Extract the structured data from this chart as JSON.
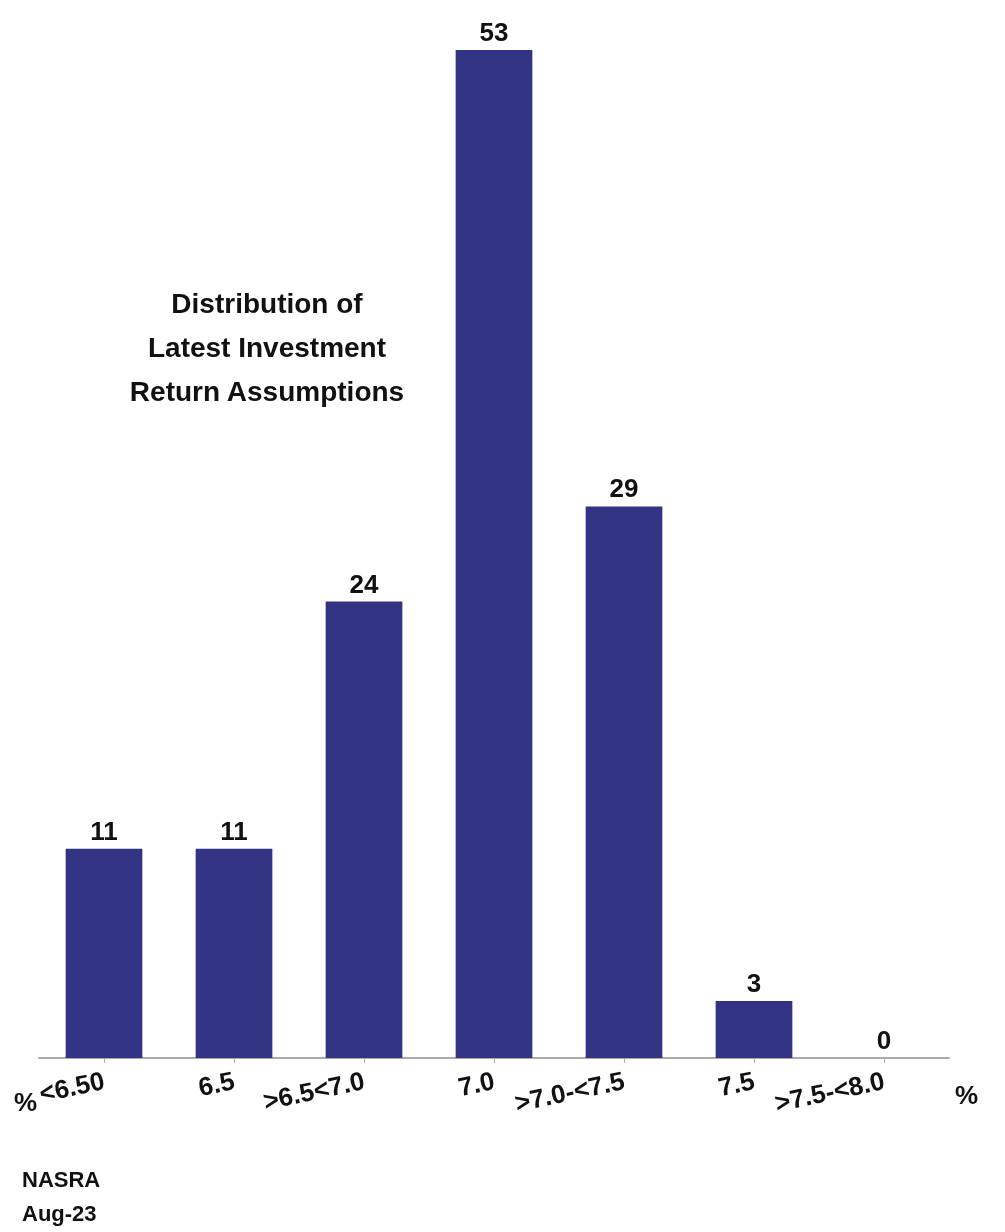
{
  "chart_data": {
    "type": "bar",
    "title": "Distribution of\nLatest Investment\nReturn Assumptions",
    "categories": [
      "<6.50",
      "6.5",
      ">6.5<7.0",
      "7.0",
      ">7.0-<7.5",
      "7.5",
      ">7.5-<8.0"
    ],
    "values": [
      11,
      11,
      24,
      53,
      29,
      3,
      0
    ],
    "color": "#333383",
    "data_labels": true,
    "annotations": [
      "%",
      "%",
      "NASRA\nAug-23"
    ]
  }
}
